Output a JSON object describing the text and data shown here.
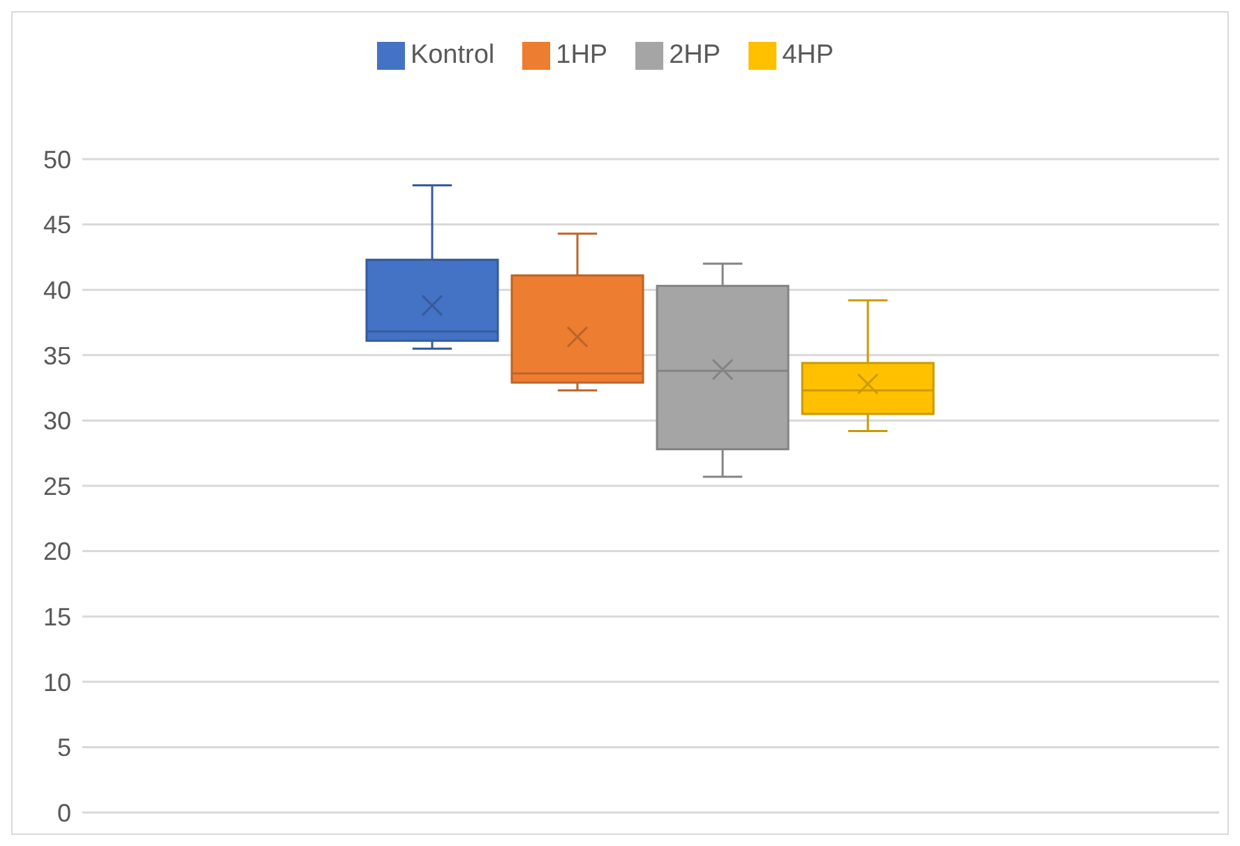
{
  "chart_data": {
    "type": "box",
    "categories": [
      null
    ],
    "series": [
      {
        "name": "Kontrol",
        "color": "#4472c4",
        "boxes": [
          {
            "low": 35.5,
            "q1": 36.1,
            "median": 36.8,
            "q3": 42.3,
            "high": 48,
            "mean": 38.8
          }
        ]
      },
      {
        "name": "1HP",
        "color": "#ed7d31",
        "boxes": [
          {
            "low": 32.3,
            "q1": 32.9,
            "median": 33.6,
            "q3": 41.1,
            "high": 44.3,
            "mean": 36.4
          }
        ]
      },
      {
        "name": "2HP",
        "color": "#a5a5a5",
        "boxes": [
          {
            "low": 25.7,
            "q1": 27.8,
            "median": 33.8,
            "q3": 40.3,
            "high": 42,
            "mean": 33.9
          }
        ]
      },
      {
        "name": "4HP",
        "color": "#ffc000",
        "boxes": [
          {
            "low": 29.2,
            "q1": 30.5,
            "median": 32.3,
            "q3": 34.4,
            "high": 39.2,
            "mean": 32.8
          }
        ]
      }
    ],
    "ylim": [
      0,
      50
    ],
    "yticks": [
      0,
      5,
      10,
      15,
      20,
      25,
      30,
      35,
      40,
      45,
      50
    ],
    "grid": "y",
    "legend": "top",
    "tick_labels": "y"
  }
}
